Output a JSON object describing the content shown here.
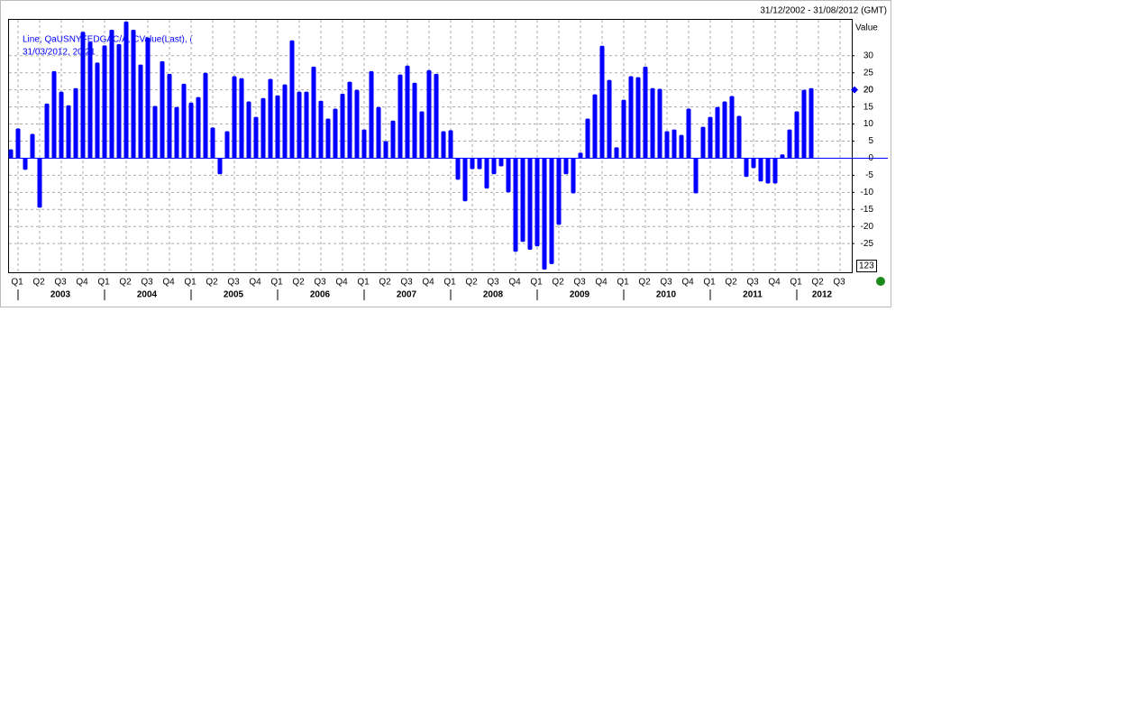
{
  "chart_data": {
    "type": "bar",
    "date_range": "31/12/2002 - 31/08/2012 (GMT)",
    "legend_lines": [
      "Line, QaUSNYFEDGAC/A, CValue(Last), (",
      "31/03/2012, 20.21"
    ],
    "y_axis_label": "Value",
    "last_value": 20,
    "cursor_label": "123",
    "color": "#0000ff",
    "values": [
      2.6,
      8.7,
      -3.4,
      7.1,
      -14.5,
      16,
      25.5,
      19.5,
      15.5,
      20.5,
      37,
      34,
      28,
      33,
      37.6,
      33.4,
      40,
      37.6,
      27.4,
      35.3,
      15.3,
      28.4,
      24.7,
      15,
      21.8,
      16.3,
      17.9,
      25,
      9,
      -4.7,
      7.9,
      24,
      23.4,
      16.6,
      12.1,
      17.6,
      23.2,
      18.4,
      21.6,
      34.5,
      19.5,
      19.5,
      26.8,
      16.8,
      11.6,
      14.5,
      18.9,
      22.4,
      20,
      8.4,
      25.5,
      15,
      5,
      11,
      24.5,
      27.1,
      22.1,
      13.7,
      25.8,
      24.7,
      7.9,
      8.2,
      -6.3,
      -12.6,
      -3.2,
      -3.2,
      -8.9,
      -4.7,
      -2.4,
      -10,
      -27.4,
      -24.5,
      -26.8,
      -25.8,
      -32.6,
      -31,
      -19.5,
      -4.7,
      -10.3,
      1.6,
      11.6,
      18.7,
      32.9,
      22.9,
      3.2,
      17.1,
      24,
      23.7,
      26.8,
      20.5,
      20.3,
      7.9,
      8.4,
      6.8,
      14.5,
      -10.3,
      9.2,
      12.1,
      15,
      16.6,
      18.2,
      12.4,
      -5.5,
      -2.9,
      -6.8,
      -7.4,
      -7.4,
      1.1,
      8.4,
      13.7,
      20,
      20.5
    ],
    "quarter_labels": [
      "Q1",
      "Q2",
      "Q3",
      "Q4",
      "Q1",
      "Q2",
      "Q3",
      "Q4",
      "Q1",
      "Q2",
      "Q3",
      "Q4",
      "Q1",
      "Q2",
      "Q3",
      "Q4",
      "Q1",
      "Q2",
      "Q3",
      "Q4",
      "Q1",
      "Q2",
      "Q3",
      "Q4",
      "Q1",
      "Q2",
      "Q3",
      "Q4",
      "Q1",
      "Q2",
      "Q3",
      "Q4",
      "Q1",
      "Q2",
      "Q3",
      "Q4",
      "Q1",
      "Q2",
      "Q3"
    ],
    "year_labels": [
      "2003",
      "2004",
      "2005",
      "2006",
      "2007",
      "2008",
      "2009",
      "2010",
      "2011",
      "2012"
    ],
    "ylim": [
      -33.4,
      40.5
    ],
    "yticks": [
      30,
      25,
      20,
      15,
      10,
      5,
      0,
      -5,
      -10,
      -15,
      -20,
      -25
    ],
    "grid": true
  }
}
